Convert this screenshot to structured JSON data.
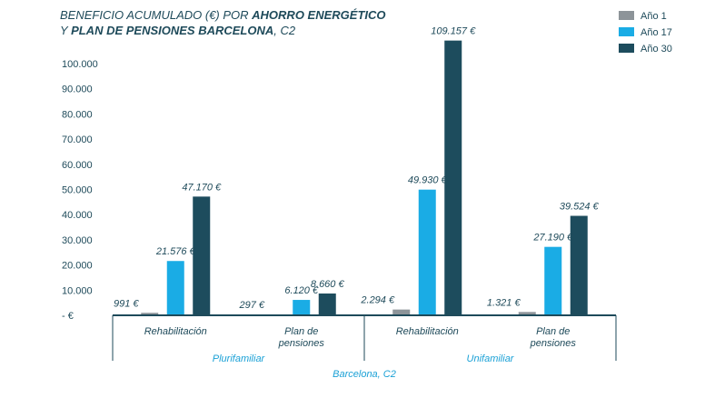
{
  "chart_data": {
    "type": "bar",
    "title_line1_prefix": "BENEFICIO ACUMULADO  (€) POR ",
    "title_line1_bold": "AHORRO ENERGÉTICO",
    "title_line2_prefix": "Y ",
    "title_line2_bold": "PLAN DE PENSIONES BARCELONA",
    "title_line2_suffix": ", C2",
    "ylim": [
      0,
      110000
    ],
    "yticks": [
      0,
      10000,
      20000,
      30000,
      40000,
      50000,
      60000,
      70000,
      80000,
      90000,
      100000
    ],
    "ytick_labels": [
      "- €",
      "10.000",
      "20.000",
      "30.000",
      "40.000",
      "50.000",
      "60.000",
      "70.000",
      "80.000",
      "90.000",
      "100.000"
    ],
    "categories": [
      "Rehabilitación",
      "Plan de pensiones",
      "Rehabilitación",
      "Plan de pensiones"
    ],
    "category_lines": [
      [
        "Rehabilitación"
      ],
      [
        "Plan de",
        "pensiones"
      ],
      [
        "Rehabilitación"
      ],
      [
        "Plan de",
        "pensiones"
      ]
    ],
    "groups": [
      "Plurifamiliar",
      "Unifamiliar"
    ],
    "outer_label": "Barcelona, C2",
    "legend_position": "top-right",
    "series": [
      {
        "name": "Año 1",
        "color": "#8d9499",
        "values": [
          991,
          297,
          2294,
          1321
        ],
        "labels": [
          "991 €",
          "297 €",
          "2.294 €",
          "1.321 €"
        ]
      },
      {
        "name": "Año 17",
        "color": "#1aace5",
        "values": [
          21576,
          6120,
          49930,
          27190
        ],
        "labels": [
          "21.576 €",
          "6.120 €",
          "49.930 €",
          "27.190 €"
        ]
      },
      {
        "name": "Año 30",
        "color": "#1d4c5d",
        "values": [
          47170,
          8660,
          109157,
          39524
        ],
        "labels": [
          "47.170 €",
          "8.660 €",
          "109.157 €",
          "39.524 €"
        ]
      }
    ]
  }
}
